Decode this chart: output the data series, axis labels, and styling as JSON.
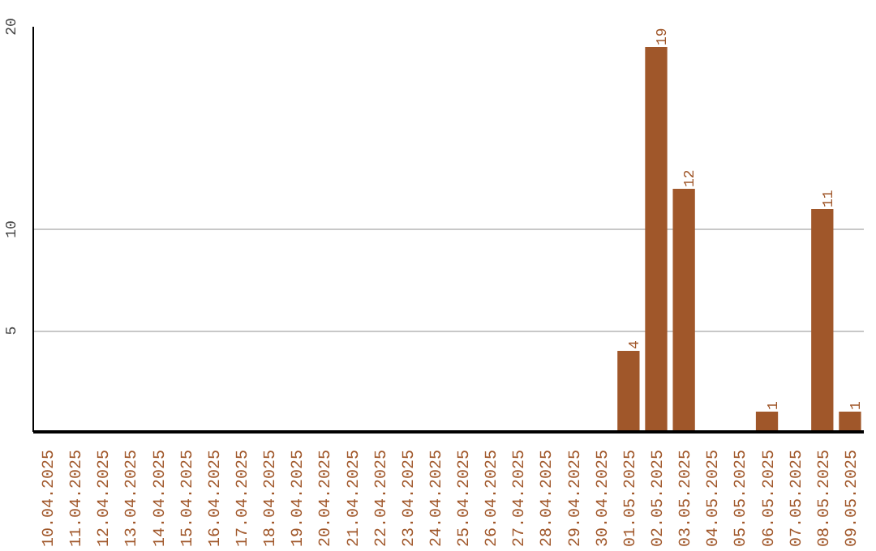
{
  "chart_data": {
    "type": "bar",
    "categories": [
      "10.04.2025",
      "11.04.2025",
      "12.04.2025",
      "13.04.2025",
      "14.04.2025",
      "15.04.2025",
      "16.04.2025",
      "17.04.2025",
      "18.04.2025",
      "19.04.2025",
      "20.04.2025",
      "21.04.2025",
      "22.04.2025",
      "23.04.2025",
      "24.04.2025",
      "25.04.2025",
      "26.04.2025",
      "27.04.2025",
      "28.04.2025",
      "29.04.2025",
      "30.04.2025",
      "01.05.2025",
      "02.05.2025",
      "03.05.2025",
      "04.05.2025",
      "05.05.2025",
      "06.05.2025",
      "07.05.2025",
      "08.05.2025",
      "09.05.2025"
    ],
    "values": [
      0,
      0,
      0,
      0,
      0,
      0,
      0,
      0,
      0,
      0,
      0,
      0,
      0,
      0,
      0,
      0,
      0,
      0,
      0,
      0,
      0,
      4,
      19,
      12,
      0,
      0,
      1,
      0,
      11,
      1
    ],
    "value_labels": [
      null,
      null,
      null,
      null,
      null,
      null,
      null,
      null,
      null,
      null,
      null,
      null,
      null,
      null,
      null,
      null,
      null,
      null,
      null,
      null,
      null,
      "4",
      "19",
      "12",
      null,
      null,
      "1",
      null,
      "11",
      "1"
    ],
    "color": "#a0572a",
    "ylim": [
      0,
      20
    ],
    "yticks": [
      5,
      10,
      20
    ],
    "grid": "y"
  }
}
